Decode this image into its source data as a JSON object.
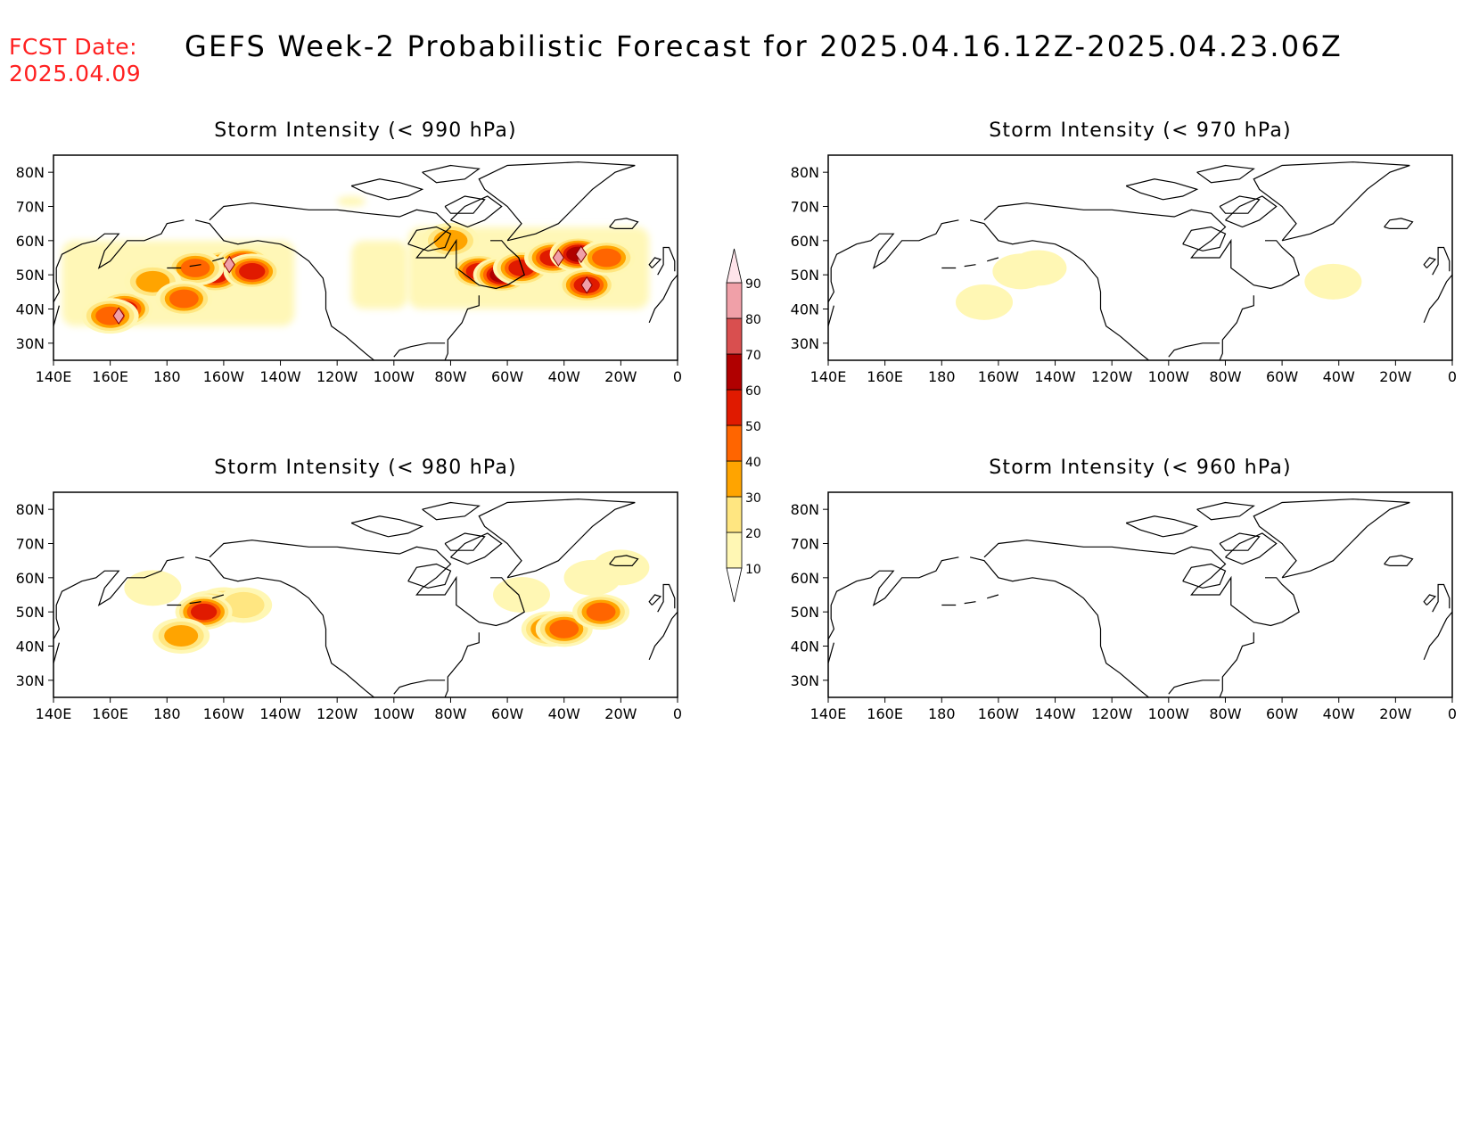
{
  "header": {
    "fcst_label": "FCST Date:",
    "fcst_date": "2025.04.09",
    "title": "GEFS Week-2 Probabilistic Forecast for 2025.04.16.12Z-2025.04.23.06Z"
  },
  "axes": {
    "lat_labels": [
      "80N",
      "70N",
      "60N",
      "50N",
      "40N",
      "30N"
    ],
    "lon_labels": [
      "140E",
      "160E",
      "180",
      "160W",
      "140W",
      "120W",
      "100W",
      "80W",
      "60W",
      "40W",
      "20W",
      "0"
    ]
  },
  "panels": [
    {
      "title": "Storm Intensity (< 990 hPa)",
      "blobs": [
        {
          "lon": 200,
          "lat": 52,
          "level": 60
        },
        {
          "lon": 207,
          "lat": 53,
          "level": 60
        },
        {
          "lon": 197,
          "lat": 50,
          "level": 50
        },
        {
          "lon": 210,
          "lat": 51,
          "level": 50
        },
        {
          "lon": 190,
          "lat": 52,
          "level": 40
        },
        {
          "lon": 165,
          "lat": 40,
          "level": 50
        },
        {
          "lon": 160,
          "lat": 38,
          "level": 40
        },
        {
          "lon": 175,
          "lat": 48,
          "level": 30
        },
        {
          "lon": 186,
          "lat": 43,
          "level": 40
        },
        {
          "lon": 290,
          "lat": 51,
          "level": 50
        },
        {
          "lon": 298,
          "lat": 50,
          "level": 60
        },
        {
          "lon": 305,
          "lat": 52,
          "level": 50
        },
        {
          "lon": 316,
          "lat": 55,
          "level": 50
        },
        {
          "lon": 325,
          "lat": 56,
          "level": 60
        },
        {
          "lon": 328,
          "lat": 47,
          "level": 50
        },
        {
          "lon": 335,
          "lat": 55,
          "level": 40
        },
        {
          "lon": 280,
          "lat": 60,
          "level": 30
        }
      ],
      "peaks": [
        {
          "lon": 202,
          "lat": 53
        },
        {
          "lon": 163,
          "lat": 38
        },
        {
          "lon": 326,
          "lat": 56
        },
        {
          "lon": 328,
          "lat": 47
        },
        {
          "lon": 318,
          "lat": 55
        }
      ],
      "areas": [
        {
          "lon": [
            143,
            225
          ],
          "lat": [
            35,
            60
          ]
        },
        {
          "lon": [
            265,
            350
          ],
          "lat": [
            40,
            64
          ]
        },
        {
          "lon": [
            245,
            265
          ],
          "lat": [
            40,
            60
          ]
        },
        {
          "lon": [
            240,
            250
          ],
          "lat": [
            70,
            73
          ]
        }
      ]
    },
    {
      "title": "Storm Intensity (< 970 hPa)",
      "blobs": [
        {
          "lon": 208,
          "lat": 51,
          "level": 10
        },
        {
          "lon": 214,
          "lat": 52,
          "level": 10
        },
        {
          "lon": 195,
          "lat": 42,
          "level": 10
        },
        {
          "lon": 318,
          "lat": 48,
          "level": 10
        }
      ],
      "peaks": [],
      "areas": []
    },
    {
      "title": "Storm Intensity (< 980 hPa)",
      "blobs": [
        {
          "lon": 200,
          "lat": 52,
          "level": 30
        },
        {
          "lon": 195,
          "lat": 51,
          "level": 40
        },
        {
          "lon": 207,
          "lat": 52,
          "level": 20
        },
        {
          "lon": 193,
          "lat": 50,
          "level": 50
        },
        {
          "lon": 185,
          "lat": 43,
          "level": 30
        },
        {
          "lon": 175,
          "lat": 57,
          "level": 10
        },
        {
          "lon": 305,
          "lat": 55,
          "level": 10
        },
        {
          "lon": 315,
          "lat": 45,
          "level": 40
        },
        {
          "lon": 320,
          "lat": 45,
          "level": 40
        },
        {
          "lon": 333,
          "lat": 50,
          "level": 40
        },
        {
          "lon": 330,
          "lat": 60,
          "level": 10
        },
        {
          "lon": 340,
          "lat": 63,
          "level": 10
        }
      ],
      "peaks": [],
      "areas": []
    },
    {
      "title": "Storm Intensity (< 960 hPa)",
      "blobs": [],
      "peaks": [],
      "areas": []
    }
  ],
  "colorbar": {
    "levels": [
      "10",
      "20",
      "30",
      "40",
      "50",
      "60",
      "70",
      "80",
      "90"
    ],
    "colors": [
      "#fff7b4",
      "#ffe681",
      "#ffa400",
      "#ff6500",
      "#e01a00",
      "#b00000",
      "#d94f4f",
      "#f0a0a8",
      "#ffe4ea"
    ]
  },
  "map": {
    "lon_range": [
      140,
      360
    ],
    "lat_range": [
      25,
      85
    ]
  }
}
